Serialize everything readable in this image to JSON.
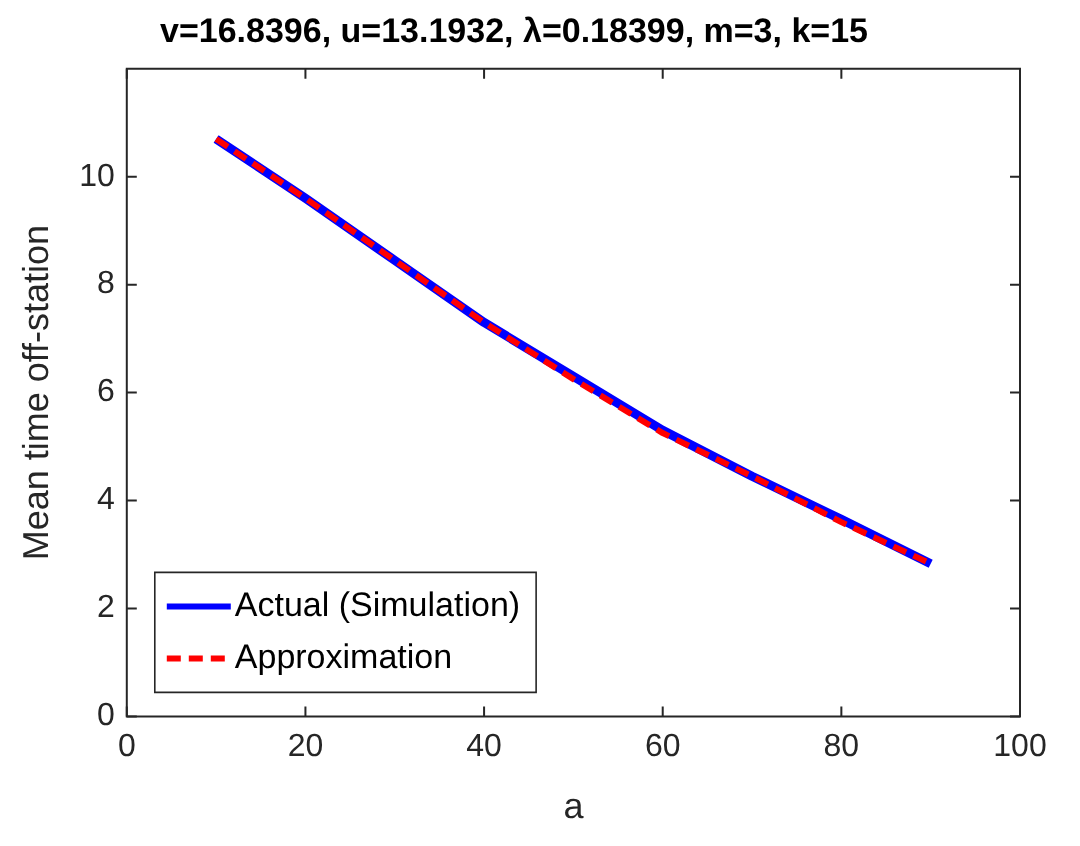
{
  "chart_data": {
    "type": "line",
    "title": "v=16.8396, u=13.1932, λ=0.18399, m=3, k=15",
    "xlabel": "a",
    "ylabel": "Mean time off-station",
    "x": [
      10,
      20,
      30,
      40,
      50,
      60,
      70,
      80,
      90
    ],
    "series": [
      {
        "name": "Actual (Simulation)",
        "color": "#0000ff",
        "line_style": "solid",
        "values": [
          10.7,
          9.6,
          8.45,
          7.3,
          6.3,
          5.3,
          4.45,
          3.65,
          2.83
        ]
      },
      {
        "name": "Approximation",
        "color": "#ff0000",
        "line_style": "dashed",
        "values": [
          10.7,
          9.6,
          8.45,
          7.3,
          6.25,
          5.25,
          4.45,
          3.6,
          2.83
        ]
      }
    ],
    "xlim": [
      0,
      100
    ],
    "xticks": [
      0,
      20,
      40,
      60,
      80,
      100
    ],
    "ylim": [
      0,
      12
    ],
    "yticks": [
      0,
      2,
      4,
      6,
      8,
      10
    ],
    "grid": false,
    "legend": "bottom left",
    "marker": "none"
  }
}
